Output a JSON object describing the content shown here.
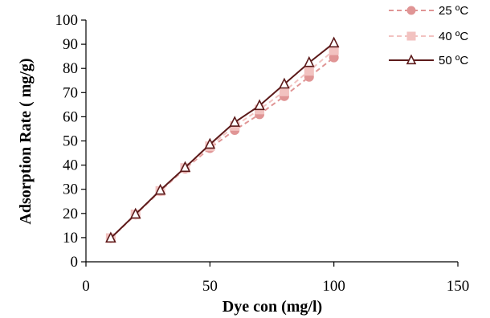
{
  "chart_data": {
    "type": "line",
    "title": "",
    "xlabel": "Dye con (mg/l)",
    "ylabel": "Adsorption Rate ( mg/g)",
    "xlim": [
      0,
      150
    ],
    "ylim": [
      0,
      100
    ],
    "x_ticks": [
      0,
      50,
      100,
      150
    ],
    "y_ticks": [
      0,
      10,
      20,
      30,
      40,
      50,
      60,
      70,
      80,
      90,
      100
    ],
    "grid": false,
    "legend_position": "top-right",
    "x": [
      10,
      20,
      30,
      40,
      50,
      60,
      70,
      80,
      90,
      100
    ],
    "series": [
      {
        "name": "25 ºC",
        "values": [
          9.7,
          19.5,
          29.2,
          38.5,
          47.0,
          54.5,
          61.0,
          68.5,
          76.5,
          84.5
        ],
        "color": "#e09595",
        "line_style": "dashed",
        "marker": "circle"
      },
      {
        "name": "40 ºC",
        "values": [
          9.8,
          19.6,
          29.3,
          38.8,
          47.8,
          56.2,
          63.0,
          70.5,
          79.0,
          87.5
        ],
        "color": "#f2c2c0",
        "line_style": "dashed",
        "marker": "square"
      },
      {
        "name": "50 ºC",
        "values": [
          9.8,
          19.7,
          29.6,
          39.0,
          48.6,
          57.7,
          64.6,
          73.5,
          82.4,
          90.5
        ],
        "color": "#5c1a1a",
        "line_style": "solid",
        "marker": "triangle"
      }
    ]
  }
}
